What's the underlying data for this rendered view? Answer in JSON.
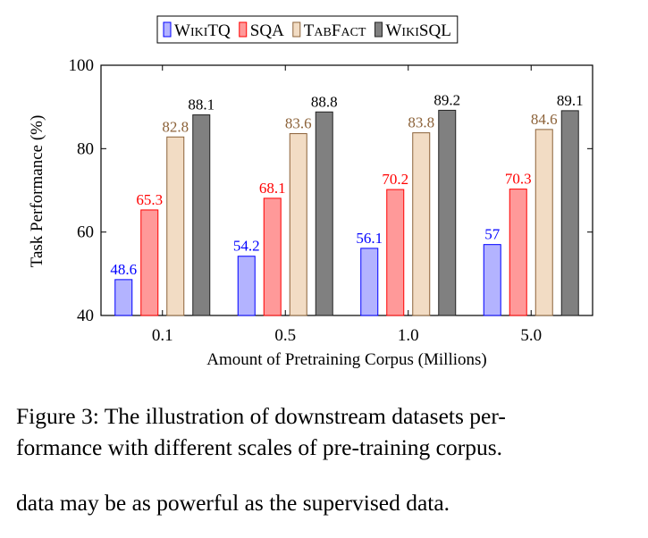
{
  "chart_data": {
    "type": "bar",
    "categories": [
      "0.1",
      "0.5",
      "1.0",
      "5.0"
    ],
    "series": [
      {
        "name": "WikiTQ",
        "values": [
          48.6,
          54.2,
          56.1,
          57
        ],
        "value_labels": [
          "48.6",
          "54.2",
          "56.1",
          "57"
        ],
        "fill": "#b3b3ff",
        "stroke": "#0000ff",
        "label_color": "#0000ff"
      },
      {
        "name": "SQA",
        "values": [
          65.3,
          68.1,
          70.2,
          70.3
        ],
        "value_labels": [
          "65.3",
          "68.1",
          "70.2",
          "70.3"
        ],
        "fill": "#ff9999",
        "stroke": "#ff0000",
        "label_color": "#ff0000"
      },
      {
        "name": "TabFact",
        "values": [
          82.8,
          83.6,
          83.8,
          84.6
        ],
        "value_labels": [
          "82.8",
          "83.6",
          "83.8",
          "84.6"
        ],
        "fill": "#f2dcc4",
        "stroke": "#8c6239",
        "label_color": "#8c6239"
      },
      {
        "name": "WikiSQL",
        "values": [
          88.1,
          88.8,
          89.2,
          89.1
        ],
        "value_labels": [
          "88.1",
          "88.8",
          "89.2",
          "89.1"
        ],
        "fill": "#808080",
        "stroke": "#222222",
        "label_color": "#000000"
      }
    ],
    "title": "",
    "xlabel": "Amount of Pretraining Corpus (Millions)",
    "ylabel": "Task Performance (%)",
    "ylim": [
      40,
      100
    ],
    "yticks": [
      40,
      60,
      80,
      100
    ],
    "grid": false,
    "legend_position": "top"
  },
  "caption": "Figure 3: The illustration of downstream datasets per-formance with different scales of pre-training corpus.",
  "caption_lines": [
    "Figure 3:  The illustration of downstream datasets per-",
    "formance with different scales of pre-training corpus."
  ],
  "body_text": "data may be as powerful as the supervised data."
}
